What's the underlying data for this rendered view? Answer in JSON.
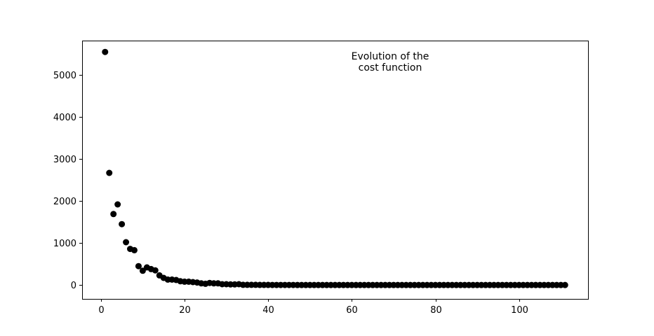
{
  "chart_data": {
    "type": "scatter",
    "title": "",
    "xlabel": "",
    "ylabel": "",
    "annotation": [
      "Evolution of the",
      "cost function"
    ],
    "xlim": [
      -4.5,
      116.5
    ],
    "ylim": [
      -330,
      5820
    ],
    "xticks": [
      0,
      20,
      40,
      60,
      80,
      100
    ],
    "yticks": [
      0,
      1000,
      2000,
      3000,
      4000,
      5000
    ],
    "grid": false,
    "marker_color": "#000000",
    "series": [
      {
        "x": [
          1,
          2,
          3,
          4,
          5,
          6,
          7,
          8,
          9,
          10,
          11,
          12,
          13,
          14,
          15,
          16,
          17,
          18,
          19,
          20,
          21,
          22,
          23,
          24,
          25,
          26,
          27,
          28,
          29,
          30,
          31,
          32,
          33,
          34,
          35,
          36,
          37,
          38,
          39,
          40,
          41,
          42,
          43,
          44,
          45,
          46,
          47,
          48,
          49,
          50,
          51,
          52,
          53,
          54,
          55,
          56,
          57,
          58,
          59,
          60,
          61,
          62,
          63,
          64,
          65,
          66,
          67,
          68,
          69,
          70,
          71,
          72,
          73,
          74,
          75,
          76,
          77,
          78,
          79,
          80,
          81,
          82,
          83,
          84,
          85,
          86,
          87,
          88,
          89,
          90,
          91,
          92,
          93,
          94,
          95,
          96,
          97,
          98,
          99,
          100,
          101,
          102,
          103,
          104,
          105,
          106,
          107,
          108,
          109,
          110,
          111
        ],
        "y": [
          5550,
          2670,
          1690,
          1920,
          1450,
          1020,
          860,
          830,
          450,
          340,
          420,
          380,
          350,
          230,
          170,
          130,
          130,
          120,
          90,
          80,
          80,
          70,
          60,
          40,
          30,
          50,
          40,
          40,
          20,
          20,
          15,
          15,
          20,
          5,
          5,
          5,
          5,
          3,
          3,
          3,
          2,
          2,
          2,
          2,
          2,
          2,
          1,
          1,
          1,
          1,
          1,
          1,
          1,
          1,
          1,
          1,
          1,
          1,
          1,
          1,
          1,
          1,
          1,
          1,
          1,
          1,
          1,
          1,
          1,
          1,
          1,
          1,
          1,
          1,
          1,
          1,
          1,
          1,
          1,
          1,
          1,
          1,
          1,
          1,
          1,
          1,
          1,
          1,
          1,
          1,
          1,
          1,
          1,
          1,
          1,
          1,
          1,
          1,
          1,
          1,
          1,
          1,
          1,
          1,
          1,
          1,
          1,
          1,
          1,
          1,
          1
        ]
      }
    ]
  }
}
